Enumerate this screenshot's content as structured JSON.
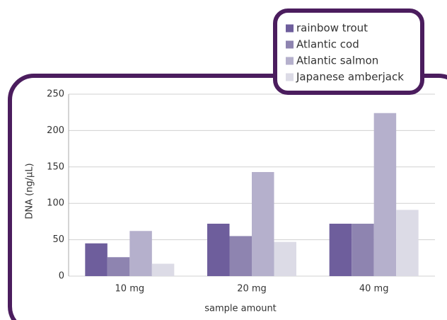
{
  "chart_data": {
    "type": "bar",
    "categories": [
      "10 mg",
      "20 mg",
      "40 mg"
    ],
    "series": [
      {
        "name": "rainbow trout",
        "color": "#6e5e9c",
        "values": [
          45,
          72,
          72
        ]
      },
      {
        "name": "Atlantic cod",
        "color": "#8e84b0",
        "values": [
          26,
          55,
          72
        ]
      },
      {
        "name": "Atlantic salmon",
        "color": "#b5b0cc",
        "values": [
          62,
          143,
          224
        ]
      },
      {
        "name": "Japanese amberjack",
        "color": "#dcdbe6",
        "values": [
          17,
          47,
          91
        ]
      }
    ],
    "xlabel": "sample amount",
    "ylabel": "DNA (ng/µL)",
    "ylim": [
      0,
      250
    ],
    "yticks": [
      0,
      50,
      100,
      150,
      200,
      250
    ],
    "grid": true,
    "legend": "top-right"
  }
}
